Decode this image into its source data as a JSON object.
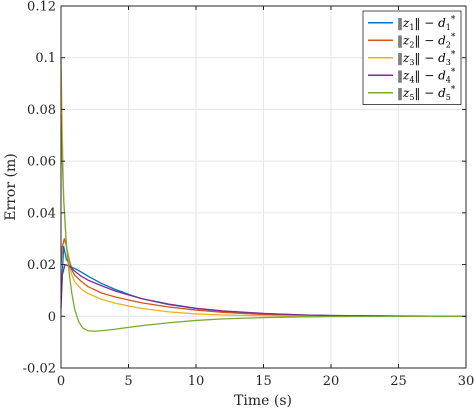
{
  "chart_data": {
    "type": "line",
    "title": "",
    "xlabel": "Time (s)",
    "ylabel": "Error (m)",
    "xlim": [
      0,
      30
    ],
    "ylim": [
      -0.02,
      0.12
    ],
    "grid": true,
    "legend_placement": "top-right",
    "x_ticks": [
      "0",
      "5",
      "10",
      "15",
      "20",
      "25",
      "30"
    ],
    "y_ticks": [
      "-0.02",
      "0",
      "0.02",
      "0.04",
      "0.06",
      "0.08",
      "0.1",
      "0.12"
    ],
    "series": [
      {
        "name": "‖z1‖ − d1*",
        "label_parts": {
          "sub": "1"
        },
        "color": "#0072BD",
        "x": [
          0,
          0.2,
          0.4,
          0.8,
          1.2,
          1.6,
          2,
          3,
          4,
          5,
          6,
          8,
          10,
          12,
          15,
          18,
          20,
          25,
          30
        ],
        "y": [
          0.007,
          0.027,
          0.022,
          0.019,
          0.018,
          0.0168,
          0.0155,
          0.0127,
          0.0104,
          0.0085,
          0.0068,
          0.0045,
          0.003,
          0.0019,
          0.001,
          0.0005,
          0.0003,
          0.0001,
          0.0
        ]
      },
      {
        "name": "‖z2‖ − d2*",
        "label_parts": {
          "sub": "2"
        },
        "color": "#D95319",
        "x": [
          0,
          0.1,
          0.25,
          0.4,
          0.6,
          0.8,
          1,
          1.5,
          2,
          3,
          4,
          5,
          6,
          8,
          10,
          12,
          15,
          18,
          20,
          25,
          30
        ],
        "y": [
          0.02,
          0.027,
          0.03,
          0.027,
          0.022,
          0.018,
          0.016,
          0.0135,
          0.0115,
          0.009,
          0.0075,
          0.0063,
          0.0052,
          0.0036,
          0.0024,
          0.0015,
          0.0007,
          0.0003,
          0.0002,
          0.0,
          0.0
        ]
      },
      {
        "name": "‖z3‖ − d3*",
        "label_parts": {
          "sub": "3"
        },
        "color": "#EDB120",
        "x": [
          0,
          0.1,
          0.2,
          0.4,
          0.6,
          0.8,
          1,
          1.5,
          2,
          3,
          4,
          5,
          6,
          8,
          10,
          12,
          15,
          18,
          20,
          25,
          30
        ],
        "y": [
          0.1,
          0.07,
          0.045,
          0.027,
          0.02,
          0.016,
          0.0135,
          0.0105,
          0.0088,
          0.0066,
          0.0051,
          0.004,
          0.003,
          0.0017,
          0.0009,
          0.0005,
          0.0002,
          0.0001,
          0.0,
          0.0,
          0.0
        ]
      },
      {
        "name": "‖z4‖ − d4*",
        "label_parts": {
          "sub": "4"
        },
        "color": "#7E2F8E",
        "x": [
          0,
          0.1,
          0.3,
          0.6,
          1,
          1.5,
          2,
          3,
          4,
          5,
          6,
          8,
          10,
          12,
          15,
          18,
          20,
          25,
          30
        ],
        "y": [
          0.003,
          0.016,
          0.02,
          0.0195,
          0.0175,
          0.0155,
          0.014,
          0.0118,
          0.0098,
          0.0083,
          0.0068,
          0.0047,
          0.0031,
          0.0021,
          0.0011,
          0.0005,
          0.0003,
          0.0001,
          0.0
        ]
      },
      {
        "name": "‖z5‖ − d5*",
        "label_parts": {
          "sub": "5"
        },
        "color": "#77AC30",
        "x": [
          0,
          0.1,
          0.2,
          0.4,
          0.6,
          0.8,
          1,
          1.3,
          1.6,
          2,
          2.5,
          3,
          4,
          5,
          6,
          8,
          10,
          12,
          15,
          18,
          20,
          25,
          30
        ],
        "y": [
          0.078,
          0.06,
          0.045,
          0.028,
          0.017,
          0.009,
          0.003,
          -0.002,
          -0.0045,
          -0.0056,
          -0.0058,
          -0.0056,
          -0.005,
          -0.0043,
          -0.0036,
          -0.0025,
          -0.0016,
          -0.001,
          -0.0005,
          -0.0002,
          -0.0001,
          0.0,
          0.0
        ]
      }
    ]
  }
}
